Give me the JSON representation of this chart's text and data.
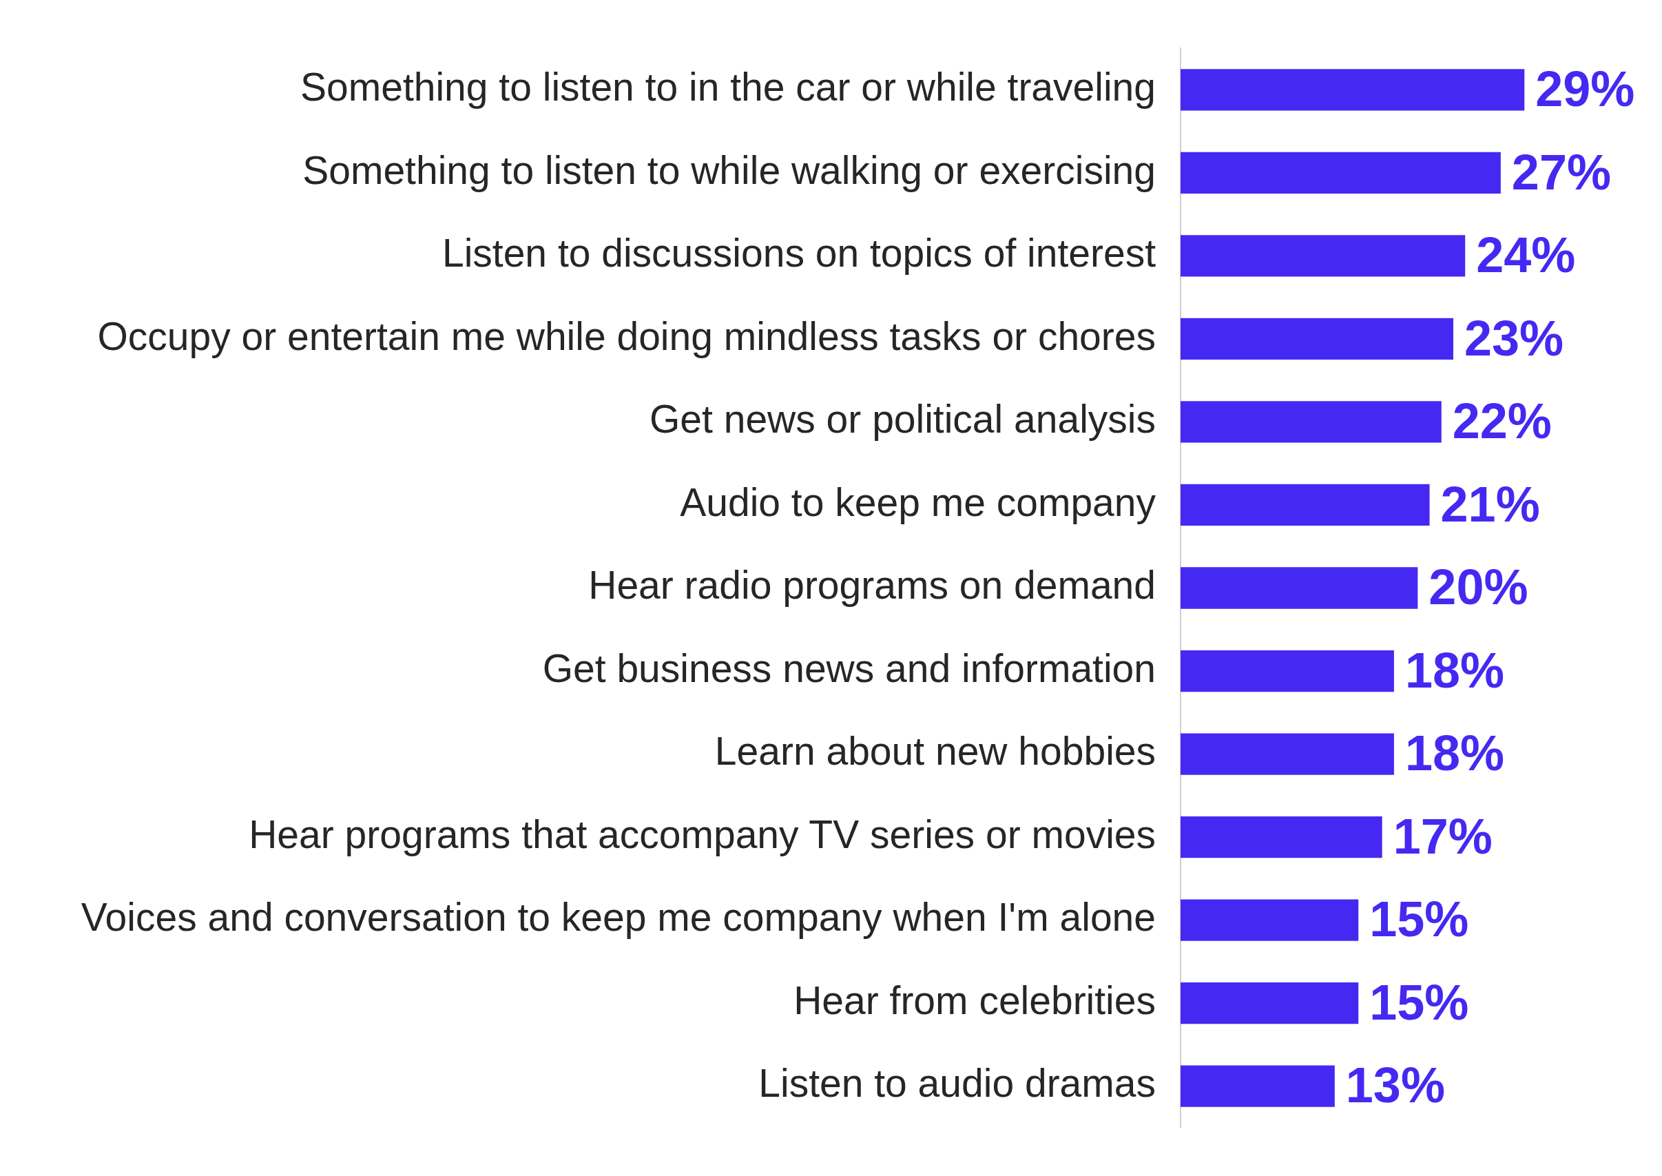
{
  "chart_data": {
    "type": "bar",
    "orientation": "horizontal",
    "legend": false,
    "tick_labels": "y",
    "color": "#4529f2",
    "categories": [
      "Something to listen to in the car or while traveling",
      "Something to listen to while walking or exercising",
      "Listen to discussions on topics of interest",
      "Occupy or entertain me while doing mindless tasks or chores",
      "Get news or political analysis",
      "Audio to keep me company",
      "Hear radio programs on demand",
      "Get business news and information",
      "Learn about new hobbies",
      "Hear programs that accompany TV series or movies",
      "Voices and conversation to keep me company when I'm alone",
      "Hear from celebrities",
      "Listen to audio dramas"
    ],
    "values": [
      29,
      27,
      24,
      23,
      22,
      21,
      20,
      18,
      18,
      17,
      15,
      15,
      13
    ],
    "value_labels": [
      "29%",
      "27%",
      "24%",
      "23%",
      "22%",
      "21%",
      "20%",
      "18%",
      "18%",
      "17%",
      "15%",
      "15%",
      "13%"
    ]
  }
}
